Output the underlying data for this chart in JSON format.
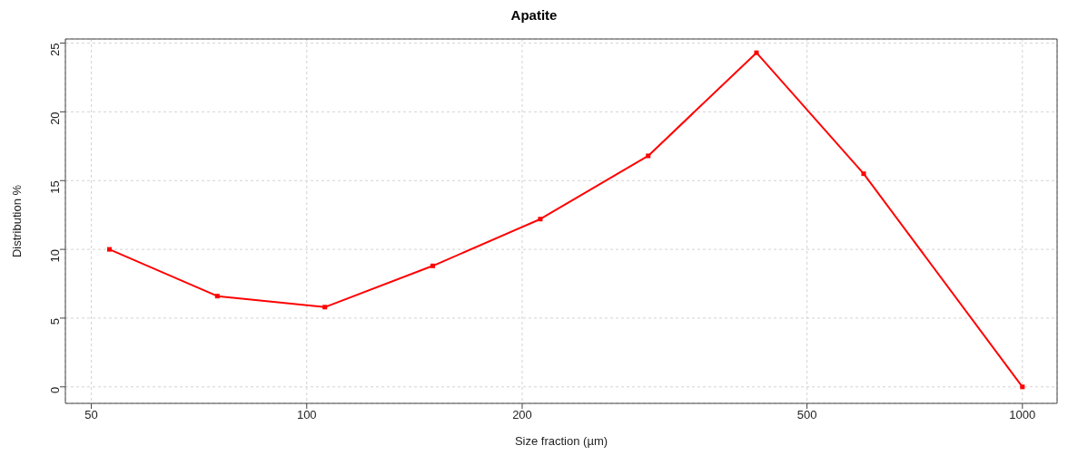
{
  "chart_data": {
    "type": "line",
    "title": "Apatite",
    "xlabel": "Size fraction (µm)",
    "ylabel": "Distribution %",
    "x": [
      53,
      75,
      106,
      150,
      212,
      300,
      425,
      600,
      1000
    ],
    "series": [
      {
        "color": "#ff0000",
        "values": [
          10.0,
          6.6,
          5.8,
          8.8,
          12.2,
          16.8,
          24.3,
          15.5,
          0
        ]
      }
    ],
    "log": "x",
    "xlim": [
      46,
      1118
    ],
    "xticks": [
      50,
      100,
      200,
      500,
      1000
    ],
    "ylim": [
      -1.2,
      25.3
    ],
    "yticks": [
      0,
      5,
      10,
      15,
      20,
      25
    ],
    "grid": true,
    "marker": "square",
    "line_style": "solid"
  }
}
